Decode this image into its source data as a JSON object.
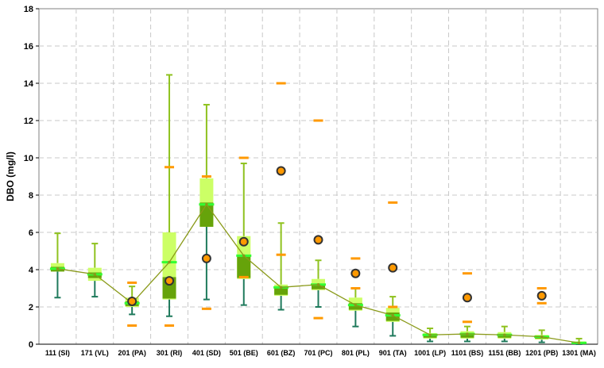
{
  "chart_data": {
    "type": "box",
    "ylabel": "DBO (mg/l)",
    "ylim": [
      0,
      18
    ],
    "yticks": [
      0,
      2,
      4,
      6,
      8,
      10,
      12,
      14,
      16,
      18
    ],
    "grid": true,
    "categories": [
      "111 (SI)",
      "171 (VL)",
      "201 (PA)",
      "301 (RI)",
      "401 (SD)",
      "501 (BE)",
      "601 (BZ)",
      "701 (PC)",
      "801 (PL)",
      "901 (TA)",
      "1001 (LP)",
      "1101 (BS)",
      "1151 (BB)",
      "1201 (PB)",
      "1301 (MA)"
    ],
    "series": [
      {
        "kind": "box",
        "q1": [
          3.9,
          3.4,
          2.0,
          2.4,
          6.3,
          3.5,
          2.6,
          2.9,
          1.8,
          1.2,
          0.3,
          0.3,
          0.3,
          0.25,
          0.02
        ],
        "q3": [
          4.35,
          4.1,
          2.5,
          6.0,
          8.9,
          5.8,
          3.2,
          3.5,
          2.5,
          1.95,
          0.6,
          0.7,
          0.65,
          0.5,
          0.15
        ],
        "mean_band": [
          3.9,
          3.55,
          2.05,
          2.45,
          6.3,
          3.55,
          2.65,
          2.95,
          1.85,
          1.25,
          0.35,
          0.35,
          0.35,
          0.3,
          0.03
        ],
        "mean_band_top": [
          4.15,
          3.85,
          2.3,
          3.6,
          7.6,
          4.8,
          3.1,
          3.25,
          2.2,
          1.7,
          0.55,
          0.6,
          0.55,
          0.45,
          0.1
        ],
        "median": [
          4.05,
          3.75,
          2.2,
          4.4,
          7.5,
          4.75,
          3.05,
          3.2,
          2.1,
          1.55,
          0.5,
          0.55,
          0.5,
          0.4,
          0.07
        ],
        "whisker_low": [
          2.5,
          2.55,
          1.6,
          1.5,
          2.4,
          2.1,
          1.85,
          2.0,
          0.95,
          0.45,
          0.15,
          0.15,
          0.15,
          0.1,
          0.0
        ],
        "whisker_high": [
          5.95,
          5.4,
          3.1,
          14.45,
          12.85,
          9.7,
          6.5,
          4.5,
          3.0,
          2.55,
          0.85,
          0.95,
          0.95,
          0.75,
          0.3
        ]
      },
      {
        "kind": "line",
        "values": [
          4.05,
          3.75,
          2.2,
          4.4,
          7.5,
          4.75,
          3.05,
          3.2,
          2.1,
          1.55,
          0.5,
          0.55,
          0.5,
          0.4,
          0.07
        ]
      },
      {
        "kind": "scatter-circle",
        "points": [
          [
            2,
            2.3
          ],
          [
            3,
            3.4
          ],
          [
            4,
            4.6
          ],
          [
            5,
            5.5
          ],
          [
            6,
            9.3
          ],
          [
            7,
            5.6
          ],
          [
            8,
            3.8
          ],
          [
            9,
            4.1
          ],
          [
            11,
            2.5
          ],
          [
            13,
            2.6
          ]
        ]
      },
      {
        "kind": "scatter-dash",
        "points": [
          [
            2,
            3.3
          ],
          [
            2,
            1.0
          ],
          [
            3,
            9.5
          ],
          [
            3,
            1.0
          ],
          [
            4,
            9.0
          ],
          [
            4,
            1.9
          ],
          [
            5,
            10.0
          ],
          [
            5,
            3.6
          ],
          [
            6,
            14.0
          ],
          [
            6,
            4.8
          ],
          [
            7,
            12.0
          ],
          [
            7,
            1.4
          ],
          [
            8,
            4.6
          ],
          [
            8,
            3.0
          ],
          [
            9,
            7.6
          ],
          [
            9,
            2.0
          ],
          [
            11,
            3.8
          ],
          [
            11,
            1.2
          ],
          [
            13,
            3.0
          ],
          [
            13,
            2.2
          ]
        ]
      }
    ],
    "colors": {
      "box_light": "#ccff66",
      "box_dark": "#66a30a",
      "median": "#33ff33",
      "whisker_upper": "#8fc21f",
      "whisker_lower": "#1f7a5c",
      "mean_line": "#8a9a1a",
      "circle_fill": "#ff9900",
      "circle_stroke": "#333333",
      "dash": "#ff9900",
      "grid": "#c8c8c8"
    }
  }
}
